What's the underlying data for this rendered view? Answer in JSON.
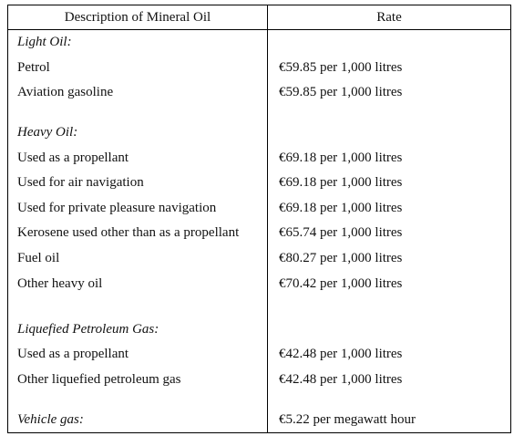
{
  "table": {
    "headers": [
      "Description of Mineral Oil",
      "Rate"
    ],
    "groups": [
      {
        "category": "Light Oil:",
        "rows": [
          {
            "description": "Petrol",
            "rate": "€59.85 per 1,000 litres"
          },
          {
            "description": "Aviation gasoline",
            "rate": "€59.85 per 1,000 litres"
          }
        ]
      },
      {
        "category": "Heavy Oil:",
        "rows": [
          {
            "description": "Used as a propellant",
            "rate": "€69.18 per 1,000 litres"
          },
          {
            "description": "Used for air navigation",
            "rate": "€69.18 per 1,000 litres"
          },
          {
            "description": "Used for private pleasure navigation",
            "rate": "€69.18 per 1,000 litres"
          },
          {
            "description": "Kerosene used other than as a propellant",
            "rate": "€65.74 per 1,000 litres"
          },
          {
            "description": "Fuel oil",
            "rate": "€80.27 per 1,000 litres"
          },
          {
            "description": "Other heavy oil",
            "rate": "€70.42 per 1,000 litres"
          }
        ]
      },
      {
        "category": "Liquefied Petroleum Gas:",
        "rows": [
          {
            "description": "Used as a propellant",
            "rate": "€42.48 per 1,000 litres"
          },
          {
            "description": "Other liquefied petroleum gas",
            "rate": "€42.48 per 1,000 litres"
          }
        ]
      },
      {
        "category": "Vehicle gas:",
        "category_rate": "€5.22 per megawatt hour",
        "rows": []
      }
    ]
  }
}
